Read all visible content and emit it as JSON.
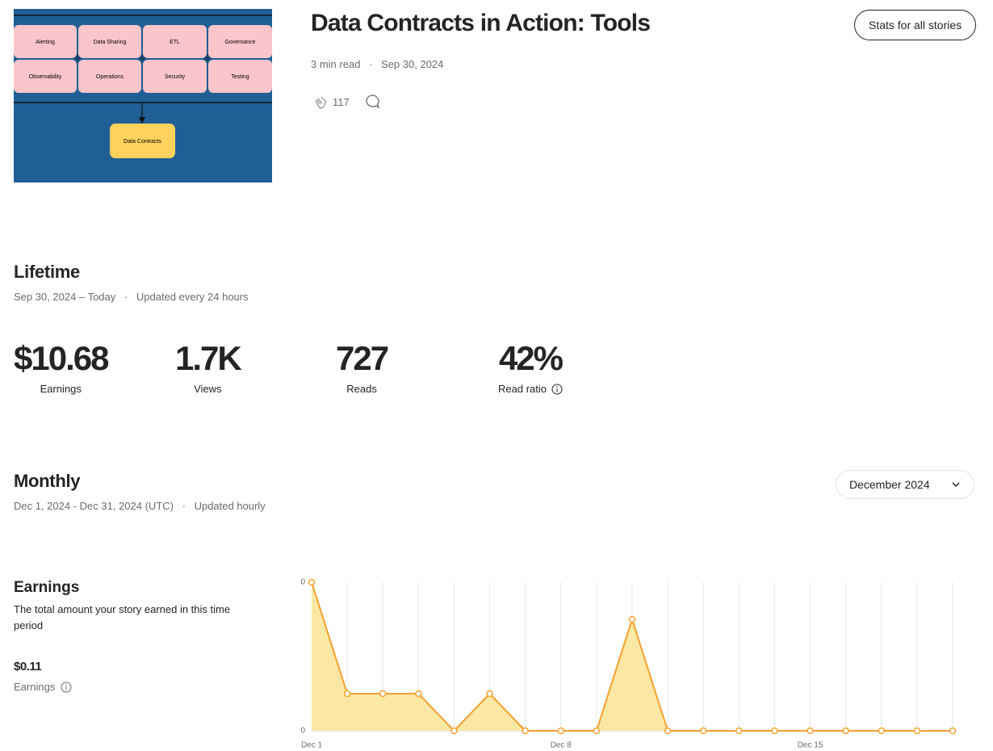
{
  "thumbnail": {
    "boxes": [
      "Alerting",
      "Data Sharing",
      "ETL",
      "Governance",
      "Observability",
      "Operations",
      "Security",
      "Testing"
    ],
    "target": "Data Contracts"
  },
  "header": {
    "title": "Data Contracts in Action: Tools",
    "read_time": "3 min read",
    "date": "Sep 30, 2024",
    "claps": 117,
    "stats_button": "Stats for all stories"
  },
  "lifetime": {
    "title": "Lifetime",
    "range": "Sep 30, 2024 – Today",
    "updated": "Updated every 24 hours",
    "stats": [
      {
        "value": "$10.68",
        "label": "Earnings"
      },
      {
        "value": "1.7K",
        "label": "Views"
      },
      {
        "value": "727",
        "label": "Reads"
      },
      {
        "value": "42%",
        "label": "Read ratio"
      }
    ]
  },
  "monthly": {
    "title": "Monthly",
    "range": "Dec 1, 2024 - Dec 31, 2024 (UTC)",
    "updated": "Updated hourly",
    "month_select": "December 2024"
  },
  "earnings": {
    "title": "Earnings",
    "description": "The total amount your story earned in this time period",
    "total": "$0.11",
    "total_label": "Earnings"
  },
  "chart_data": {
    "type": "area",
    "categories": [
      "Dec 1",
      null,
      null,
      null,
      null,
      null,
      null,
      "Dec 8",
      null,
      null,
      null,
      null,
      null,
      null,
      "Dec 15",
      null,
      null,
      null,
      null
    ],
    "values": [
      0.04,
      0.01,
      0.01,
      0.01,
      0,
      0.01,
      0,
      0,
      0,
      0.03,
      0,
      0,
      0,
      0,
      0,
      0,
      0,
      0,
      0
    ],
    "color": "#f5a030",
    "fill": "#fde7a4",
    "ylim": [
      0,
      0.04
    ],
    "yticks": [
      0,
      {
        "value": 0.04,
        "label": "0"
      }
    ]
  }
}
